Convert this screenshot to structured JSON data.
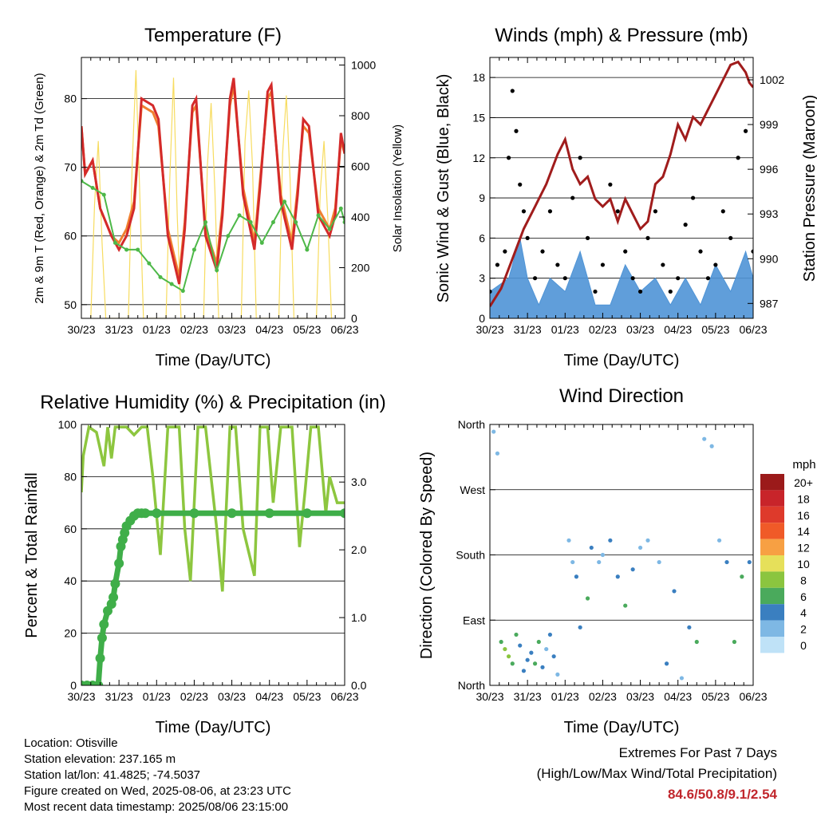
{
  "chart_data": [
    {
      "id": "temperature",
      "type": "line",
      "title": "Temperature (F)",
      "xlabel": "Time (Day/UTC)",
      "ylabel": "2m & 9m T (Red, Orange) & 2m Td (Green)",
      "ylabel_right": "Solar Insolation (Yellow)",
      "ylim": [
        48,
        86
      ],
      "ylim_right": [
        0,
        1030
      ],
      "yticks": [
        50,
        60,
        70,
        80
      ],
      "yticks_right": [
        0,
        200,
        400,
        600,
        800,
        1000
      ],
      "x_tick_labels": [
        "30/23",
        "31/23",
        "01/23",
        "02/23",
        "03/23",
        "04/23",
        "05/23",
        "06/23"
      ],
      "xlim_days": [
        0,
        7
      ],
      "grid": "horizontal",
      "colors": {
        "temp_2m": "#d42a2a",
        "temp_9m": "#f08030",
        "dewpoint": "#4db848",
        "solar": "#f7dc60"
      },
      "series": [
        {
          "name": "2m T",
          "x": [
            0,
            0.1,
            0.3,
            0.5,
            0.8,
            1,
            1.2,
            1.4,
            1.6,
            1.9,
            2.05,
            2.3,
            2.6,
            2.75,
            2.95,
            3.05,
            3.3,
            3.6,
            3.75,
            3.95,
            4.05,
            4.3,
            4.6,
            4.75,
            4.95,
            5.05,
            5.3,
            5.6,
            5.75,
            5.9,
            6.05,
            6.3,
            6.6,
            6.75,
            6.9,
            7
          ],
          "y": [
            76,
            69,
            71,
            64,
            60,
            58,
            60,
            64,
            80,
            79,
            77,
            60,
            53,
            61,
            79,
            80,
            60,
            55,
            63,
            80,
            83,
            66,
            58,
            67,
            81,
            82,
            65,
            58,
            66,
            77,
            76,
            63,
            60,
            63,
            75,
            72
          ]
        },
        {
          "name": "9m T",
          "x": [
            0,
            0.1,
            0.3,
            0.5,
            0.8,
            1,
            1.2,
            1.4,
            1.6,
            1.9,
            2.05,
            2.3,
            2.6,
            2.75,
            2.95,
            3.05,
            3.3,
            3.6,
            3.75,
            3.95,
            4.05,
            4.3,
            4.6,
            4.75,
            4.95,
            5.05,
            5.3,
            5.6,
            5.75,
            5.9,
            6.05,
            6.3,
            6.6,
            6.75,
            6.9,
            7
          ],
          "y": [
            76,
            69,
            71,
            64,
            60,
            59,
            61,
            65,
            79,
            78,
            76,
            61,
            54,
            62,
            78,
            79,
            61,
            56,
            64,
            79,
            82,
            67,
            59,
            68,
            80,
            81,
            66,
            59,
            67,
            76,
            75,
            64,
            61,
            64,
            74,
            72
          ]
        },
        {
          "name": "2m Td",
          "x": [
            0,
            0.3,
            0.6,
            0.9,
            1.2,
            1.5,
            1.8,
            2.1,
            2.4,
            2.7,
            3.0,
            3.3,
            3.6,
            3.9,
            4.2,
            4.5,
            4.8,
            5.1,
            5.4,
            5.7,
            6.0,
            6.3,
            6.6,
            6.9,
            7
          ],
          "y": [
            68,
            67,
            66,
            59,
            58,
            58,
            56,
            54,
            53,
            52,
            58,
            62,
            55,
            60,
            63,
            62,
            59,
            62,
            65,
            62,
            58,
            63,
            61,
            64,
            62
          ]
        },
        {
          "name": "Solar",
          "x": [
            0.25,
            0.35,
            0.45,
            0.55,
            0.65,
            1.25,
            1.35,
            1.45,
            1.55,
            1.65,
            2.25,
            2.35,
            2.45,
            2.55,
            2.65,
            3.25,
            3.35,
            3.45,
            3.55,
            3.65,
            4.25,
            4.35,
            4.45,
            4.55,
            4.65,
            5.25,
            5.35,
            5.45,
            5.55,
            5.65,
            6.25,
            6.35,
            6.45,
            6.55,
            6.65
          ],
          "y": [
            0,
            450,
            700,
            300,
            0,
            0,
            600,
            980,
            500,
            0,
            0,
            550,
            950,
            400,
            0,
            0,
            600,
            850,
            500,
            0,
            0,
            700,
            900,
            600,
            0,
            0,
            650,
            880,
            550,
            0,
            0,
            500,
            700,
            400,
            0
          ]
        }
      ]
    },
    {
      "id": "winds",
      "type": "scatter",
      "title": "Winds (mph) & Pressure (mb)",
      "xlabel": "Time (Day/UTC)",
      "ylabel": "Sonic Wind & Gust (Blue, Black)",
      "ylabel_right": "Station Pressure (Maroon)",
      "ylim": [
        0,
        19.5
      ],
      "ylim_right": [
        986,
        1003.5
      ],
      "yticks": [
        0,
        3,
        6,
        9,
        12,
        15,
        18
      ],
      "yticks_right": [
        987,
        990,
        993,
        996,
        999,
        1002
      ],
      "x_tick_labels": [
        "30/23",
        "31/23",
        "01/23",
        "02/23",
        "03/23",
        "04/23",
        "05/23",
        "06/23"
      ],
      "xlim_days": [
        0,
        7
      ],
      "grid": "horizontal",
      "colors": {
        "wind": "#4f94d6",
        "gust": "#000000",
        "pressure": "#a01c1c"
      },
      "series": [
        {
          "name": "Sonic Wind",
          "x": [
            0,
            0.5,
            0.8,
            1,
            1.3,
            1.6,
            2,
            2.4,
            2.8,
            3.2,
            3.6,
            4,
            4.4,
            4.8,
            5.2,
            5.6,
            6,
            6.4,
            6.8,
            7
          ],
          "y": [
            2,
            3,
            6,
            3,
            1,
            3,
            2,
            5,
            1,
            1,
            4,
            2,
            3,
            1,
            3,
            1,
            4,
            2,
            5,
            3
          ]
        },
        {
          "name": "Sonic Gust",
          "x": [
            0,
            0.2,
            0.4,
            0.5,
            0.6,
            0.7,
            0.8,
            0.9,
            1,
            1.2,
            1.4,
            1.6,
            1.8,
            2,
            2.2,
            2.4,
            2.6,
            2.8,
            3,
            3.2,
            3.4,
            3.6,
            3.8,
            4,
            4.2,
            4.4,
            4.6,
            4.8,
            5,
            5.2,
            5.4,
            5.6,
            5.8,
            6,
            6.2,
            6.4,
            6.6,
            6.8,
            7
          ],
          "y": [
            2,
            4,
            5,
            12,
            17,
            14,
            10,
            8,
            6,
            3,
            5,
            8,
            4,
            3,
            9,
            12,
            6,
            2,
            4,
            10,
            8,
            5,
            3,
            2,
            6,
            8,
            4,
            2,
            3,
            7,
            9,
            5,
            3,
            4,
            8,
            6,
            12,
            14,
            5
          ]
        },
        {
          "name": "Station Pressure",
          "x": [
            0,
            0.3,
            0.6,
            0.9,
            1.2,
            1.5,
            1.8,
            2.0,
            2.2,
            2.4,
            2.6,
            2.8,
            3.0,
            3.2,
            3.4,
            3.6,
            3.8,
            4.0,
            4.2,
            4.4,
            4.6,
            4.8,
            5.0,
            5.2,
            5.4,
            5.6,
            5.8,
            6.0,
            6.2,
            6.4,
            6.6,
            6.8,
            6.9,
            7
          ],
          "y": [
            986.8,
            988,
            990,
            992,
            993.5,
            995,
            997,
            998,
            996,
            995,
            995.5,
            994,
            993.5,
            994,
            992.5,
            994,
            993,
            992,
            992.5,
            995,
            995.5,
            997,
            999,
            998,
            999.5,
            999,
            1000,
            1001,
            1002,
            1003,
            1003.2,
            1002.5,
            1001.8,
            1001.5
          ]
        }
      ]
    },
    {
      "id": "humidity",
      "type": "line",
      "title": "Relative Humidity (%) & Precipitation (in)",
      "xlabel": "Time (Day/UTC)",
      "ylabel": "Percent & Total Rainfall",
      "ylim": [
        0,
        100
      ],
      "ylim_right": [
        0,
        3.85
      ],
      "yticks": [
        0,
        20,
        40,
        60,
        80,
        100
      ],
      "yticks_right": [
        0.0,
        1.0,
        2.0,
        3.0
      ],
      "ytick_right_labels": [
        "0.0",
        "1.0",
        "2.0",
        "3.0"
      ],
      "x_tick_labels": [
        "30/23",
        "31/23",
        "01/23",
        "02/23",
        "03/23",
        "04/23",
        "05/23",
        "06/23"
      ],
      "xlim_days": [
        0,
        7
      ],
      "grid": "horizontal",
      "colors": {
        "rh": "#8dc63f",
        "precip": "#3fae49"
      },
      "series": [
        {
          "name": "Relative Humidity",
          "x": [
            0,
            0.05,
            0.2,
            0.4,
            0.6,
            0.7,
            0.8,
            0.9,
            1.0,
            1.2,
            1.4,
            1.6,
            1.75,
            1.9,
            2.1,
            2.3,
            2.6,
            2.75,
            2.9,
            3.1,
            3.3,
            3.6,
            3.75,
            3.95,
            4.1,
            4.3,
            4.6,
            4.75,
            4.95,
            5.1,
            5.3,
            5.6,
            5.8,
            5.95,
            6.1,
            6.3,
            6.5,
            6.6,
            6.8,
            7
          ],
          "y": [
            74,
            88,
            99,
            97,
            84,
            99,
            87,
            99,
            99,
            99,
            96,
            99,
            99,
            80,
            50,
            99,
            99,
            60,
            40,
            99,
            99,
            60,
            36,
            99,
            99,
            60,
            42,
            99,
            99,
            70,
            99,
            99,
            53,
            75,
            99,
            99,
            66,
            80,
            70,
            70
          ]
        },
        {
          "name": "Total Precipitation",
          "x": [
            0,
            0.15,
            0.3,
            0.45,
            0.5,
            0.55,
            0.6,
            0.7,
            0.8,
            0.85,
            0.9,
            1.0,
            1.05,
            1.1,
            1.15,
            1.2,
            1.3,
            1.4,
            1.5,
            1.6,
            1.7,
            2,
            3,
            4,
            5,
            6,
            7
          ],
          "y": [
            0,
            0,
            0,
            0,
            0.4,
            0.7,
            0.9,
            1.1,
            1.2,
            1.3,
            1.5,
            1.8,
            2.05,
            2.15,
            2.25,
            2.35,
            2.43,
            2.5,
            2.54,
            2.54,
            2.54,
            2.54,
            2.54,
            2.54,
            2.54,
            2.54,
            2.54
          ]
        }
      ]
    },
    {
      "id": "direction",
      "type": "scatter",
      "title": "Wind Direction",
      "xlabel": "Time (Day/UTC)",
      "ylabel": "Direction (Colored By Speed)",
      "ylim": [
        0,
        360
      ],
      "yticks": [
        0,
        90,
        180,
        270,
        360
      ],
      "ytick_labels": [
        "North",
        "East",
        "South",
        "West",
        "North"
      ],
      "x_tick_labels": [
        "30/23",
        "31/23",
        "01/23",
        "02/23",
        "03/23",
        "04/23",
        "05/23",
        "06/23"
      ],
      "xlim_days": [
        0,
        7
      ],
      "grid": "horizontal",
      "legend": {
        "position": "right",
        "title": "mph",
        "labels": [
          "20+",
          "18",
          "16",
          "14",
          "12",
          "10",
          "8",
          "6",
          "4",
          "2",
          "0"
        ],
        "colors": [
          "#9b1a1a",
          "#c8242a",
          "#de3a2b",
          "#f05a28",
          "#f7a043",
          "#e6e05a",
          "#8bc53f",
          "#4aaa5c",
          "#3a7fc0",
          "#7eb8e4",
          "#bfe2f7"
        ]
      },
      "series": [
        {
          "name": "Direction",
          "x": [
            0.1,
            0.2,
            0.3,
            0.4,
            0.5,
            0.6,
            0.7,
            0.8,
            0.9,
            1.0,
            1.1,
            1.2,
            1.3,
            1.4,
            1.5,
            1.6,
            1.7,
            1.8,
            2.1,
            2.2,
            2.3,
            2.4,
            2.6,
            2.7,
            2.9,
            3.0,
            3.2,
            3.4,
            3.6,
            3.8,
            4.0,
            4.2,
            4.5,
            4.7,
            4.9,
            5.1,
            5.3,
            5.5,
            5.7,
            5.9,
            6.1,
            6.3,
            6.5,
            6.7,
            6.9
          ],
          "y": [
            350,
            320,
            60,
            50,
            40,
            30,
            70,
            55,
            20,
            35,
            45,
            30,
            60,
            25,
            50,
            70,
            40,
            15,
            200,
            170,
            150,
            80,
            120,
            190,
            170,
            180,
            200,
            150,
            110,
            160,
            190,
            200,
            170,
            30,
            130,
            10,
            80,
            60,
            340,
            330,
            200,
            170,
            60,
            150,
            170
          ],
          "speed": [
            1,
            2,
            5,
            7,
            8,
            6,
            5,
            4,
            3,
            4,
            3,
            5,
            6,
            3,
            2,
            4,
            3,
            1,
            2,
            1,
            3,
            4,
            5,
            4,
            2,
            1,
            3,
            4,
            5,
            3,
            2,
            1,
            2,
            3,
            4,
            1,
            3,
            5,
            1,
            2,
            1,
            3,
            5,
            6,
            4
          ]
        }
      ]
    }
  ],
  "info": {
    "location": "Location: Otisville",
    "elevation": "Station elevation: 237.165 m",
    "latlon": "Station lat/lon: 41.4825; -74.5037",
    "created": "Figure created on Wed, 2025-08-06, at 23:23 UTC",
    "recent": "Most recent data timestamp: 2025/08/06 23:15:00"
  },
  "extremes": {
    "title": "Extremes For Past 7 Days",
    "subtitle": "(High/Low/Max Wind/Total Precipitation)",
    "values": "84.6/50.8/9.1/2.54"
  }
}
